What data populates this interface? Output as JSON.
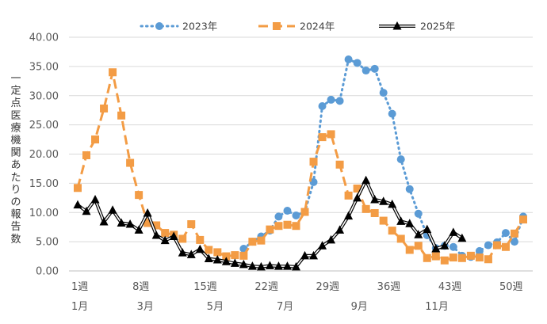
{
  "chart_data": {
    "type": "line",
    "title": "",
    "ylabel": "一定点医療機関あたりの報告数",
    "ylim": [
      0,
      40
    ],
    "yticks": [
      "0.00",
      "5.00",
      "10.00",
      "15.00",
      "20.00",
      "25.00",
      "30.00",
      "35.00",
      "40.00"
    ],
    "yticks_values": [
      0,
      5,
      10,
      15,
      20,
      25,
      30,
      35,
      40
    ],
    "week_ticks": [
      {
        "week": 1,
        "label": "1週"
      },
      {
        "week": 8,
        "label": "8週"
      },
      {
        "week": 15,
        "label": "15週"
      },
      {
        "week": 22,
        "label": "22週"
      },
      {
        "week": 29,
        "label": "29週"
      },
      {
        "week": 36,
        "label": "36週"
      },
      {
        "week": 43,
        "label": "43週"
      },
      {
        "week": 50,
        "label": "50週"
      }
    ],
    "month_ticks": [
      {
        "week": 1,
        "label": "1月"
      },
      {
        "week": 8.5,
        "label": "3月"
      },
      {
        "week": 16.5,
        "label": "5月"
      },
      {
        "week": 24.5,
        "label": "7月"
      },
      {
        "week": 33,
        "label": "9月"
      },
      {
        "week": 41.5,
        "label": "11月"
      }
    ],
    "x_range": [
      1,
      51
    ],
    "series": [
      {
        "name": "2023年",
        "color": "#5B9BD5",
        "start_week": 20,
        "values": [
          3.8,
          5.0,
          5.9,
          6.9,
          9.3,
          10.3,
          9.5,
          10.1,
          15.2,
          28.2,
          29.3,
          29.1,
          36.2,
          35.6,
          34.3,
          34.6,
          30.5,
          26.9,
          19.1,
          14.0,
          9.8,
          6.1,
          3.9,
          4.3,
          4.1,
          2.6,
          2.4,
          3.4,
          4.4,
          4.9,
          6.5,
          5.0,
          9.3
        ]
      },
      {
        "name": "2024年",
        "color": "#F39C45",
        "start_week": 1,
        "values": [
          14.2,
          19.8,
          22.5,
          27.8,
          34.0,
          26.6,
          18.5,
          13.0,
          8.2,
          7.8,
          6.5,
          6.2,
          5.5,
          8.0,
          5.3,
          3.6,
          3.2,
          2.5,
          2.7,
          2.6,
          5.0,
          5.2,
          7.1,
          7.7,
          7.9,
          7.7,
          10.1,
          18.7,
          22.9,
          23.4,
          18.2,
          12.9,
          14.1,
          10.6,
          9.9,
          8.6,
          6.9,
          5.5,
          3.6,
          4.3,
          2.2,
          2.5,
          1.8,
          2.3,
          2.2,
          2.6,
          2.3,
          2.0,
          4.4,
          4.1,
          6.4,
          8.8
        ]
      },
      {
        "name": "2025年",
        "color": "#000000",
        "start_week": 1,
        "values": [
          11.3,
          10.2,
          12.2,
          8.4,
          10.4,
          8.2,
          8.0,
          7.0,
          9.9,
          6.1,
          5.2,
          5.9,
          3.1,
          2.8,
          3.7,
          2.1,
          1.9,
          1.6,
          1.3,
          1.1,
          0.8,
          0.7,
          0.9,
          0.8,
          0.8,
          0.7,
          2.6,
          2.6,
          4.3,
          5.3,
          7.0,
          9.4,
          12.5,
          15.5,
          12.2,
          11.9,
          11.4,
          8.5,
          8.1,
          6.2,
          7.1,
          3.8,
          4.3,
          6.6,
          5.6
        ]
      }
    ]
  }
}
